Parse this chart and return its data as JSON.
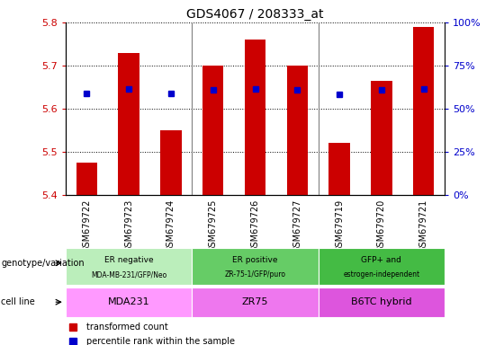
{
  "title": "GDS4067 / 208333_at",
  "samples": [
    "GSM679722",
    "GSM679723",
    "GSM679724",
    "GSM679725",
    "GSM679726",
    "GSM679727",
    "GSM679719",
    "GSM679720",
    "GSM679721"
  ],
  "bar_values": [
    5.475,
    5.73,
    5.55,
    5.7,
    5.76,
    5.7,
    5.52,
    5.665,
    5.79
  ],
  "percentile_values": [
    5.635,
    5.645,
    5.636,
    5.644,
    5.646,
    5.644,
    5.634,
    5.643,
    5.646
  ],
  "bar_color": "#cc0000",
  "dot_color": "#0000cc",
  "ylim": [
    5.4,
    5.8
  ],
  "yticks_left": [
    5.4,
    5.5,
    5.6,
    5.7,
    5.8
  ],
  "yticks_right": [
    0,
    25,
    50,
    75,
    100
  ],
  "groups": [
    {
      "label_top": "ER negative",
      "label_bot": "MDA-MB-231/GFP/Neo",
      "start": 0,
      "end": 3,
      "color": "#bbeebb"
    },
    {
      "label_top": "ER positive",
      "label_bot": "ZR-75-1/GFP/puro",
      "start": 3,
      "end": 6,
      "color": "#66cc66"
    },
    {
      "label_top": "GFP+ and",
      "label_bot": "estrogen-independent",
      "start": 6,
      "end": 9,
      "color": "#44bb44"
    }
  ],
  "cell_lines": [
    {
      "label": "MDA231",
      "start": 0,
      "end": 3,
      "color": "#ff99ff"
    },
    {
      "label": "ZR75",
      "start": 3,
      "end": 6,
      "color": "#ee77ee"
    },
    {
      "label": "B6TC hybrid",
      "start": 6,
      "end": 9,
      "color": "#dd55dd"
    }
  ],
  "bar_width": 0.5,
  "left_ytick_color": "#cc0000",
  "right_ytick_color": "#0000cc"
}
